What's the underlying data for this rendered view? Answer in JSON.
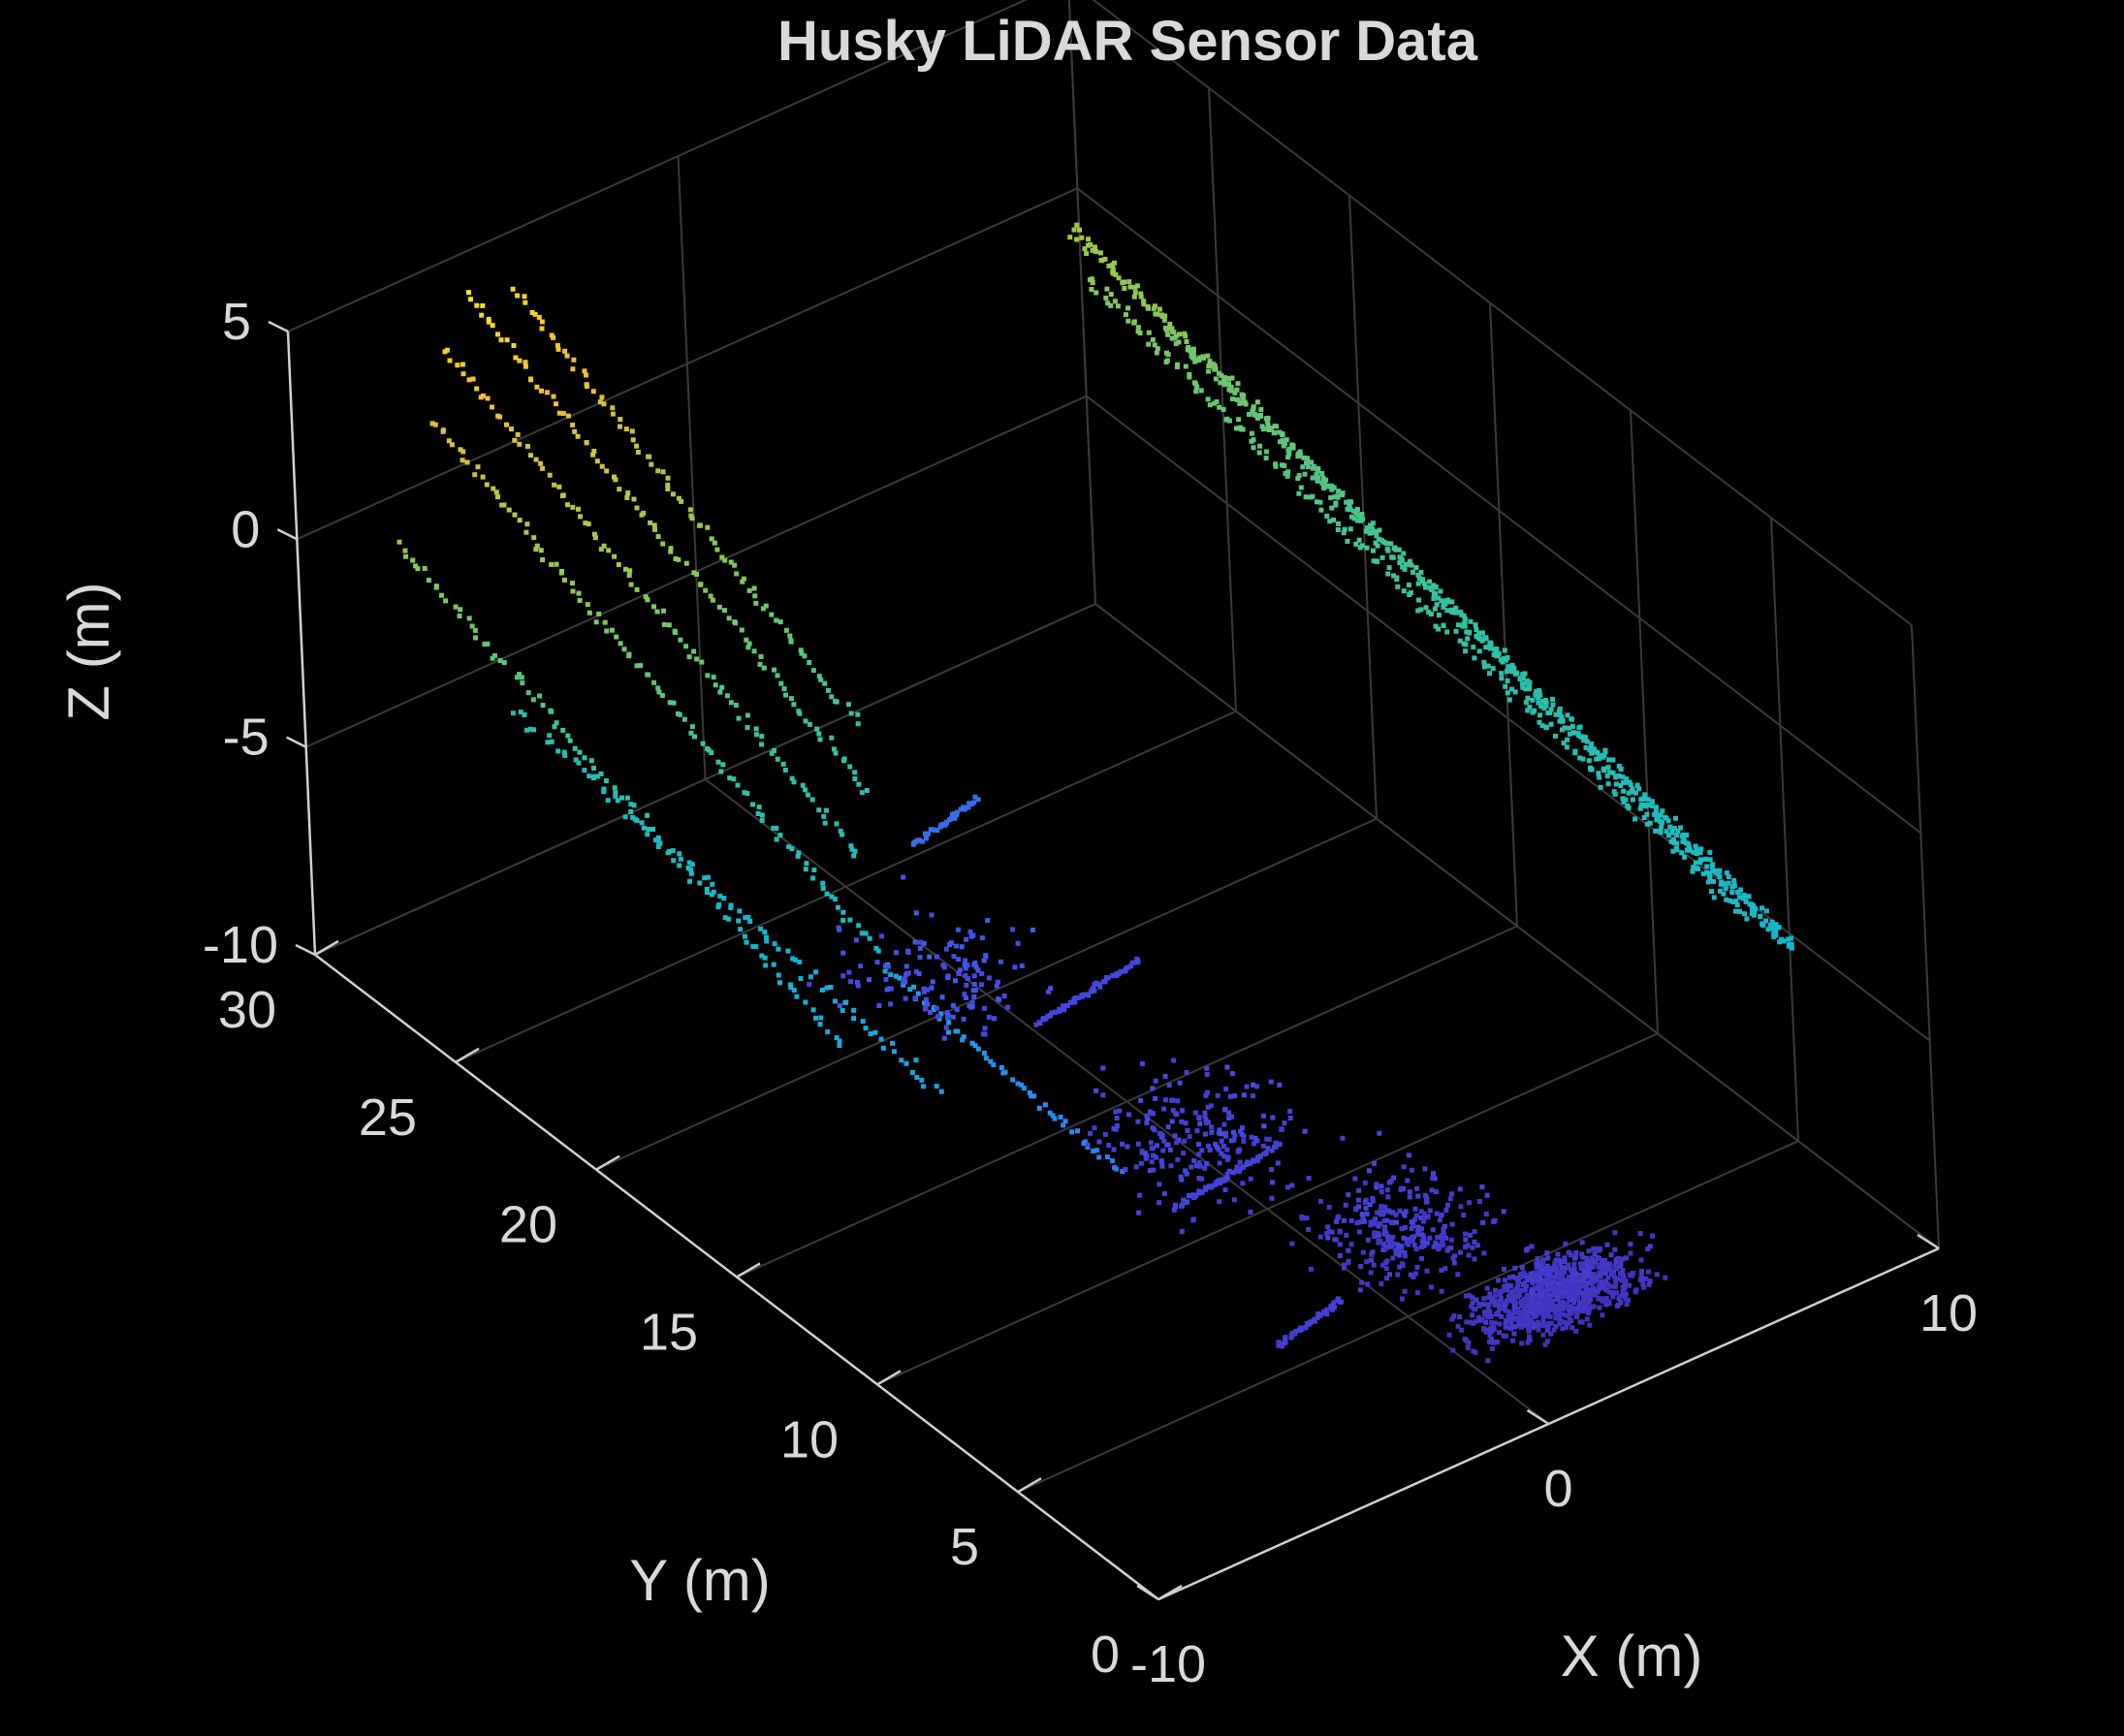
{
  "chart_data": {
    "type": "scatter",
    "dimensions": 3,
    "title": "Husky LiDAR Sensor Data",
    "xlabel": "X (m)",
    "ylabel": "Y (m)",
    "zlabel": "Z (m)",
    "xlim": [
      -10,
      10
    ],
    "ylim": [
      0,
      30
    ],
    "zlim": [
      -10,
      5
    ],
    "xticks": [
      "-10",
      "0",
      "10"
    ],
    "yticks": [
      "0",
      "5",
      "10",
      "15",
      "20",
      "25",
      "30"
    ],
    "zticks": [
      "-10",
      "-5",
      "0",
      "5"
    ],
    "grid": true,
    "colormap": "parula",
    "color_by": "z",
    "background": "#000000",
    "segments": [
      {
        "from": [
          8.0,
          2.0,
          -3.0
        ],
        "to": [
          7.8,
          27.0,
          1.5
        ],
        "n": 380,
        "jitter": 0.12
      },
      {
        "from": [
          8.3,
          2.5,
          -3.2
        ],
        "to": [
          8.0,
          24.0,
          0.6
        ],
        "n": 240,
        "jitter": 0.12
      },
      {
        "from": [
          7.6,
          3.0,
          -2.6
        ],
        "to": [
          7.4,
          26.0,
          1.0
        ],
        "n": 220,
        "jitter": 0.12
      },
      {
        "from": [
          -6.8,
          14.0,
          -3.0
        ],
        "to": [
          -7.8,
          28.0,
          3.0
        ],
        "n": 110,
        "jitter": 0.08
      },
      {
        "from": [
          -5.8,
          16.0,
          -2.2
        ],
        "to": [
          -6.8,
          29.0,
          3.8
        ],
        "n": 100,
        "jitter": 0.08
      },
      {
        "from": [
          -4.8,
          17.0,
          -1.6
        ],
        "to": [
          -5.8,
          29.5,
          4.4
        ],
        "n": 100,
        "jitter": 0.08
      },
      {
        "from": [
          -4.0,
          18.5,
          -1.0
        ],
        "to": [
          -4.6,
          29.5,
          4.0
        ],
        "n": 90,
        "jitter": 0.08
      },
      {
        "from": [
          -8.5,
          13.0,
          -4.0
        ],
        "to": [
          -9.5,
          27.0,
          1.2
        ],
        "n": 100,
        "jitter": 0.1
      },
      {
        "from": [
          -7.5,
          11.0,
          -4.5
        ],
        "to": [
          -8.8,
          24.0,
          -1.5
        ],
        "n": 90,
        "jitter": 0.1
      },
      {
        "from": [
          -5.0,
          8.0,
          -6.0
        ],
        "to": [
          -6.0,
          15.0,
          -4.2
        ],
        "n": 60,
        "jitter": 0.08
      },
      {
        "from": [
          -4.0,
          4.0,
          -8.5
        ],
        "to": [
          -2.0,
          4.5,
          -8.5
        ],
        "n": 50,
        "jitter": 0.05
      },
      {
        "from": [
          -3.0,
          9.0,
          -8.2
        ],
        "to": [
          0.0,
          9.5,
          -8.2
        ],
        "n": 60,
        "jitter": 0.05
      },
      {
        "from": [
          -1.5,
          16.0,
          -8.0
        ],
        "to": [
          1.5,
          16.5,
          -8.0
        ],
        "n": 60,
        "jitter": 0.05
      },
      {
        "from": [
          -1.0,
          21.0,
          -6.5
        ],
        "to": [
          1.0,
          21.5,
          -6.5
        ],
        "n": 40,
        "jitter": 0.05
      }
    ],
    "clusters": [
      {
        "center": [
          2.0,
          2.5,
          -9.3
        ],
        "spread": [
          3.2,
          1.8,
          0.6
        ],
        "n": 900
      },
      {
        "center": [
          0.5,
          6.0,
          -9.0
        ],
        "spread": [
          3.0,
          3.0,
          0.8
        ],
        "n": 300
      },
      {
        "center": [
          -1.0,
          11.0,
          -8.6
        ],
        "spread": [
          3.5,
          4.0,
          0.8
        ],
        "n": 220
      },
      {
        "center": [
          -2.5,
          18.0,
          -8.0
        ],
        "spread": [
          3.0,
          4.0,
          0.9
        ],
        "n": 140
      }
    ]
  }
}
